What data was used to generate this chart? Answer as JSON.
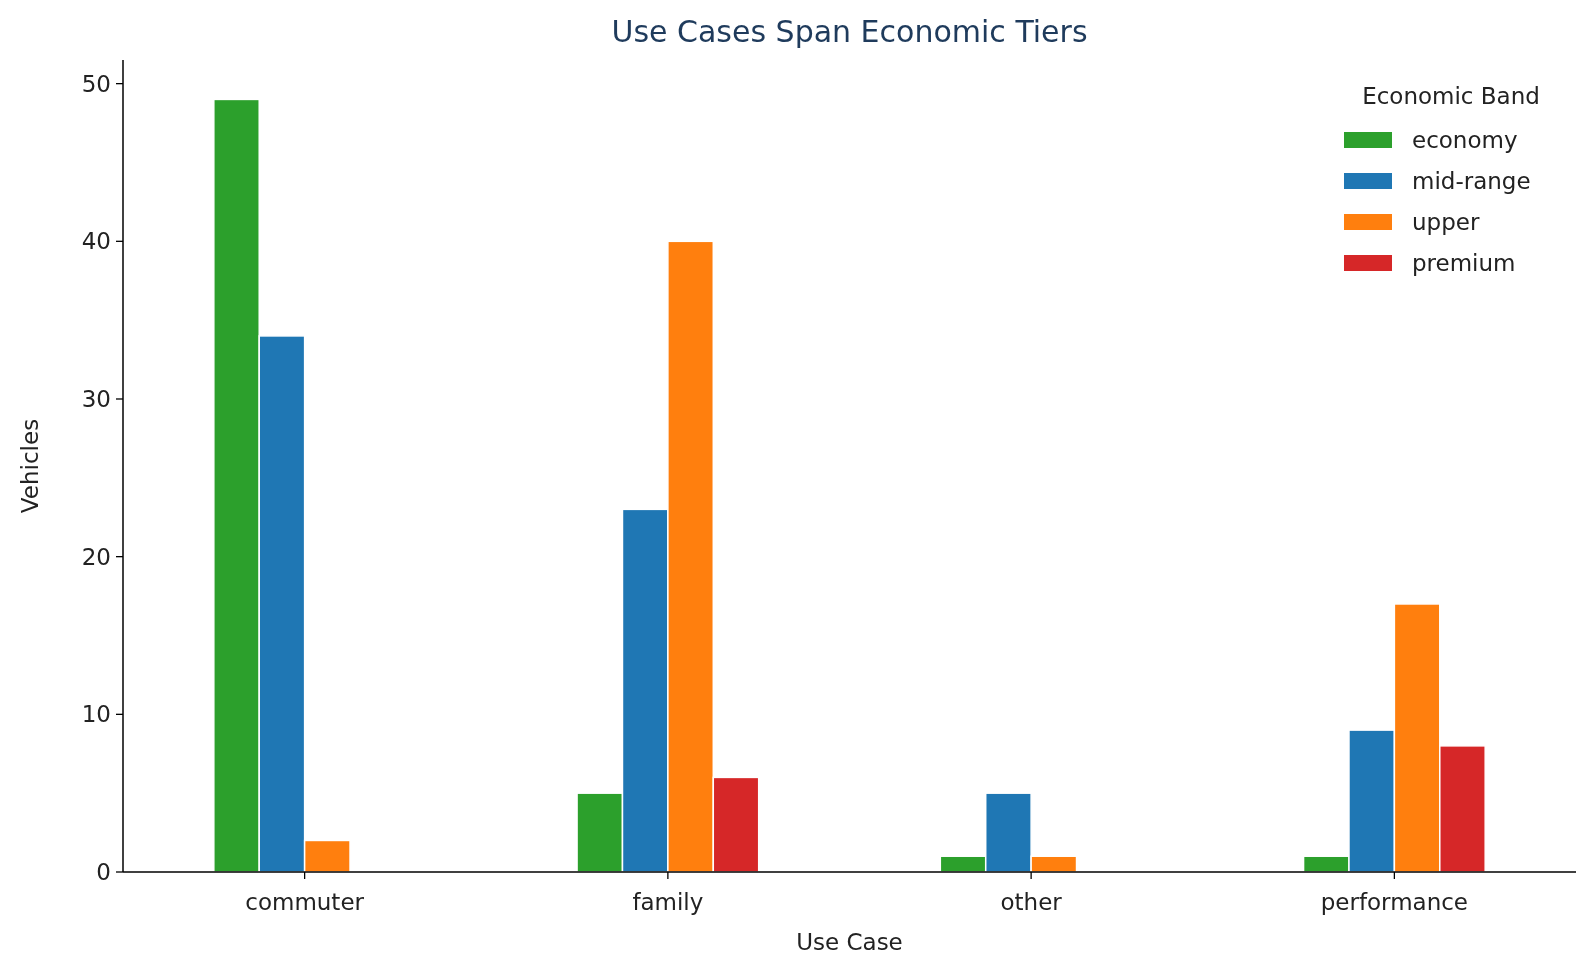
{
  "chart_data": {
    "type": "bar",
    "title": "Use Cases Span Economic Tiers",
    "xlabel": "Use Case",
    "ylabel": "Vehicles",
    "legend_title": "Economic Band",
    "categories": [
      "commuter",
      "family",
      "other",
      "performance"
    ],
    "series": [
      {
        "name": "economy",
        "color": "#2ca02c",
        "values": [
          49,
          5,
          1,
          1
        ]
      },
      {
        "name": "mid-range",
        "color": "#1f77b4",
        "values": [
          34,
          23,
          5,
          9
        ]
      },
      {
        "name": "upper",
        "color": "#ff7f0e",
        "values": [
          2,
          40,
          1,
          17
        ]
      },
      {
        "name": "premium",
        "color": "#d62728",
        "values": [
          null,
          6,
          null,
          8
        ]
      }
    ],
    "ylim": [
      0,
      51.5
    ],
    "yticks": [
      0,
      10,
      20,
      30,
      40,
      50
    ],
    "grid": false,
    "legend": "top right"
  }
}
